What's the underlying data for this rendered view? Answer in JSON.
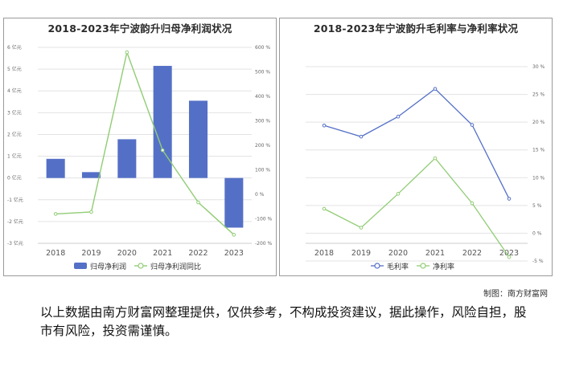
{
  "source_label": "制图：南方财富网",
  "disclaimer": "以上数据由南方财富网整理提供，仅供参考，不构成投资建议，据此操作，风险自担，股市有风险，投资需谨慎。",
  "colors": {
    "bar": "#5470c6",
    "line_green": "#91cc75",
    "line_blue": "#5470c6",
    "grid": "#e3e3e3"
  },
  "chart_data": [
    {
      "type": "bar",
      "title": "2018-2023年宁波韵升归母净利润状况",
      "categories": [
        "2018",
        "2019",
        "2020",
        "2021",
        "2022",
        "2023"
      ],
      "left_axis": {
        "ticks": [
          -3,
          -2,
          -1,
          0,
          1,
          2,
          3,
          4,
          5,
          6
        ],
        "tick_labels": [
          "-3 亿元",
          "-2 亿元",
          "-1 亿元",
          "0 亿元",
          "1 亿元",
          "2 亿元",
          "3 亿元",
          "4 亿元",
          "5 亿元",
          "6 亿元"
        ],
        "ylim": [
          -3,
          6
        ]
      },
      "right_axis": {
        "ticks": [
          -200,
          -100,
          0,
          100,
          200,
          300,
          400,
          500,
          600
        ],
        "tick_labels": [
          "-200 %",
          "-100 %",
          "0 %",
          "100 %",
          "200 %",
          "300 %",
          "400 %",
          "500 %",
          "600 %"
        ],
        "ylim": [
          -200,
          600
        ]
      },
      "series": [
        {
          "name": "归母净利润",
          "kind": "bar",
          "axis": "left",
          "values": [
            0.88,
            0.27,
            1.78,
            5.15,
            3.55,
            -2.28
          ]
        },
        {
          "name": "归母净利润同比",
          "kind": "line",
          "axis": "right",
          "values": [
            -80,
            -72,
            580,
            180,
            -33,
            -165
          ]
        }
      ],
      "legend_position": "bottom"
    },
    {
      "type": "line",
      "title": "2018-2023年宁波韵升毛利率与净利率状况",
      "categories": [
        "2018",
        "2019",
        "2020",
        "2021",
        "2022",
        "2023"
      ],
      "right_axis": {
        "ticks": [
          -5,
          0,
          5,
          10,
          15,
          20,
          25,
          30
        ],
        "tick_labels": [
          "-5 %",
          "0 %",
          "5 %",
          "10 %",
          "15 %",
          "20 %",
          "25 %",
          "30 %"
        ],
        "ylim": [
          -5,
          30
        ]
      },
      "series": [
        {
          "name": "毛利率",
          "kind": "line",
          "values": [
            19.4,
            17.4,
            21.0,
            26.0,
            19.5,
            6.2
          ]
        },
        {
          "name": "净利率",
          "kind": "line",
          "values": [
            4.4,
            1.0,
            7.1,
            13.5,
            5.4,
            -4.3
          ]
        }
      ],
      "legend_position": "bottom"
    }
  ]
}
